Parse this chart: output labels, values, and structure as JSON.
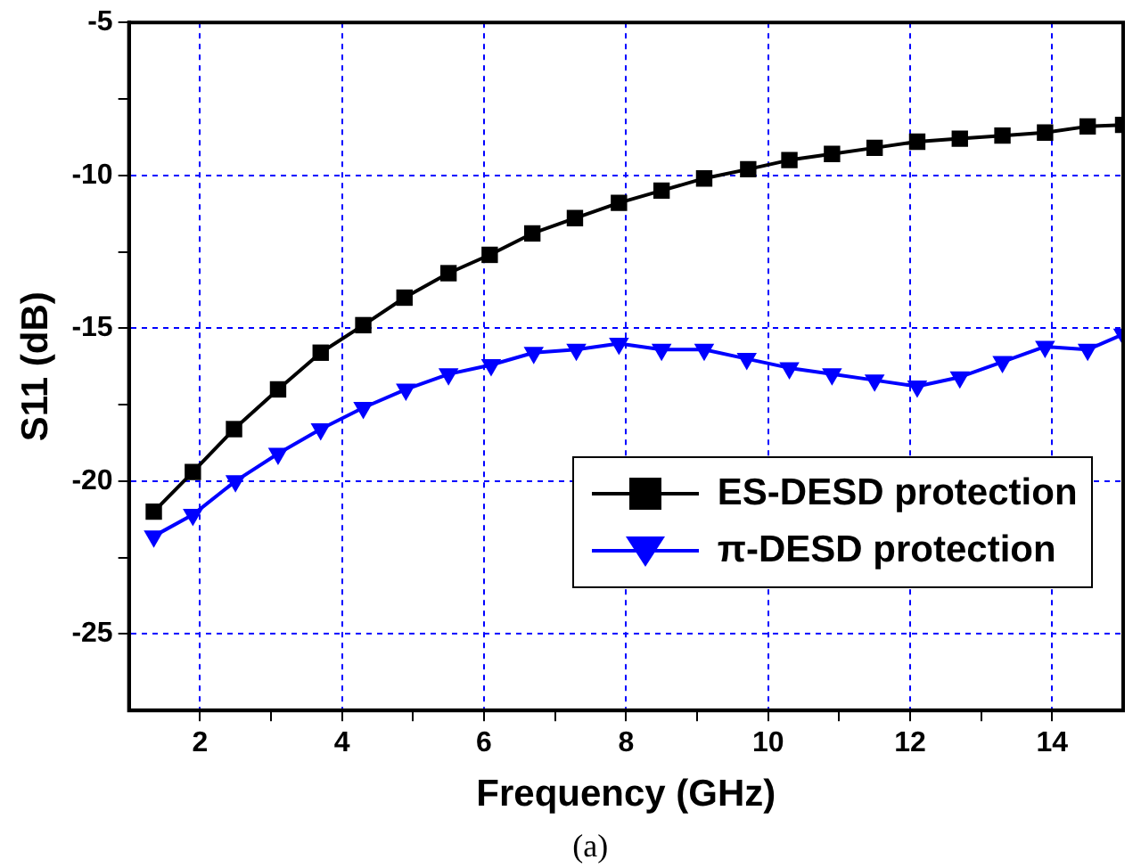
{
  "chart_data": {
    "type": "line",
    "xlabel": "Frequency (GHz)",
    "ylabel": "S11 (dB)",
    "annotations": [
      "(a)"
    ],
    "xlim": [
      1,
      15
    ],
    "ylim": [
      -27.5,
      -5
    ],
    "xticks": [
      2,
      {
        "value": 3,
        "label": null
      },
      4,
      {
        "value": 5,
        "label": null
      },
      6,
      {
        "value": 7,
        "label": null
      },
      8,
      {
        "value": 9,
        "label": null
      },
      10,
      {
        "value": 11,
        "label": null
      },
      12,
      {
        "value": 13,
        "label": null
      },
      14
    ],
    "yticks": [
      -5,
      {
        "value": -7.5,
        "label": null
      },
      -10,
      {
        "value": -12.5,
        "label": null
      },
      -15,
      {
        "value": -17.5,
        "label": null
      },
      -20,
      {
        "value": -22.5,
        "label": null
      },
      -25
    ],
    "grid": true,
    "legend": "right",
    "line_style": "solid",
    "series": [
      {
        "name": "ES-DESD protection",
        "color": "#000000",
        "marker": "square",
        "x": [
          1.35,
          1.9,
          2.48,
          3.1,
          3.7,
          4.3,
          4.88,
          5.5,
          6.08,
          6.68,
          7.28,
          7.9,
          8.5,
          9.1,
          9.72,
          10.3,
          10.9,
          11.5,
          12.1,
          12.7,
          13.3,
          13.9,
          14.5,
          15
        ],
        "values": [
          -21.0,
          -19.7,
          -18.3,
          -17.0,
          -15.8,
          -14.9,
          -14.0,
          -13.2,
          -12.6,
          -11.9,
          -11.4,
          -10.9,
          -10.5,
          -10.1,
          -9.8,
          -9.5,
          -9.3,
          -9.1,
          -8.9,
          -8.8,
          -8.7,
          -8.6,
          -8.4,
          -8.35
        ]
      },
      {
        "name": "π-DESD protection",
        "color": "#0000ff",
        "marker": "triangle",
        "x": [
          1.35,
          1.9,
          2.5,
          3.1,
          3.7,
          4.3,
          4.9,
          5.5,
          6.1,
          6.7,
          7.3,
          7.9,
          8.5,
          9.1,
          9.7,
          10.3,
          10.9,
          11.5,
          12.1,
          12.7,
          13.3,
          13.9,
          14.5,
          15
        ],
        "values": [
          -21.8,
          -21.1,
          -20.0,
          -19.1,
          -18.3,
          -17.6,
          -17.0,
          -16.5,
          -16.2,
          -15.8,
          -15.7,
          -15.5,
          -15.7,
          -15.7,
          -16.0,
          -16.3,
          -16.5,
          -16.7,
          -16.9,
          -16.6,
          -16.1,
          -15.6,
          -15.7,
          -15.2
        ]
      }
    ]
  }
}
